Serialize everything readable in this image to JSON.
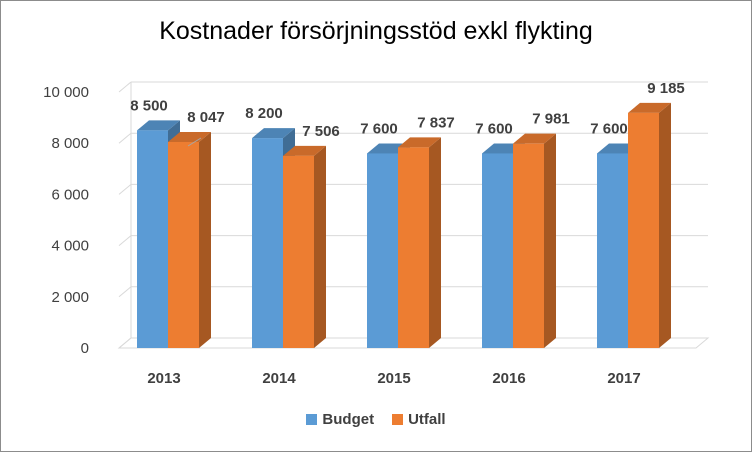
{
  "chart_data": {
    "type": "bar",
    "title": "Kostnader försörjningsstöd exkl flykting",
    "categories": [
      "2013",
      "2014",
      "2015",
      "2016",
      "2017"
    ],
    "series": [
      {
        "name": "Budget",
        "values": [
          8500,
          8200,
          7600,
          7600,
          7600
        ],
        "labels": [
          "8 500",
          "8 200",
          "7 600",
          "7 600",
          "7 600"
        ],
        "color": "#5b9bd5"
      },
      {
        "name": "Utfall",
        "values": [
          8047,
          7506,
          7837,
          7981,
          9185
        ],
        "labels": [
          "8 047",
          "7 506",
          "7 837",
          "7 981",
          "9 185"
        ],
        "color": "#ed7d31"
      }
    ],
    "ylim": [
      0,
      10000
    ],
    "yticks": [
      {
        "value": 0,
        "label": "0"
      },
      {
        "value": 2000,
        "label": "2 000"
      },
      {
        "value": 4000,
        "label": "4 000"
      },
      {
        "value": 6000,
        "label": "6 000"
      },
      {
        "value": 8000,
        "label": "8 000"
      },
      {
        "value": 10000,
        "label": "10 000"
      }
    ],
    "grid": true,
    "legend_position": "bottom",
    "style": "3d-clustered-column"
  }
}
